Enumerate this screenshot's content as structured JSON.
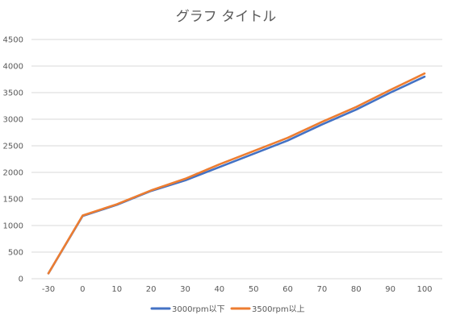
{
  "chart_data": {
    "type": "line",
    "title": "グラフ タイトル",
    "xlabel": "",
    "ylabel": "",
    "categories": [
      "-30",
      "0",
      "10",
      "20",
      "30",
      "40",
      "50",
      "60",
      "70",
      "80",
      "90",
      "100"
    ],
    "yticks": [
      "0",
      "500",
      "1000",
      "1500",
      "2000",
      "2500",
      "3000",
      "3500",
      "4000",
      "4500"
    ],
    "ylim": [
      0,
      4500
    ],
    "grid": true,
    "legend": "bottom",
    "series": [
      {
        "name": "3000rpm以下",
        "color": "#4472C4",
        "values": [
          100,
          1180,
          1390,
          1650,
          1850,
          2100,
          2350,
          2600,
          2900,
          3180,
          3500,
          3800
        ]
      },
      {
        "name": "3500rpm以上",
        "color": "#ED7D31",
        "values": [
          100,
          1190,
          1400,
          1660,
          1880,
          2150,
          2400,
          2650,
          2950,
          3230,
          3550,
          3860
        ]
      }
    ]
  }
}
